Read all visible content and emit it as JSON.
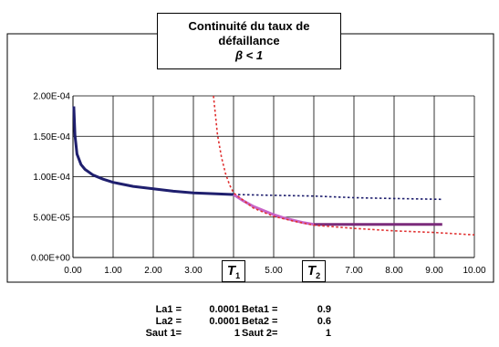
{
  "chart_data": {
    "type": "line",
    "title_line1": "Continuité du taux de",
    "title_line2": "défaillance",
    "title_line3": "β < 1",
    "x_ticks": [
      "0.00",
      "1.00",
      "2.00",
      "3.00",
      "4.00",
      "5.00",
      "6.00",
      "7.00",
      "8.00",
      "9.00",
      "10.00"
    ],
    "y_ticks": [
      "0.00E+00",
      "5.00E-05",
      "1.00E-04",
      "1.50E-04",
      "2.00E-04"
    ],
    "xlim": [
      0,
      10
    ],
    "ylim": [
      0,
      0.0002
    ],
    "grid": true,
    "markers": [
      {
        "letter": "T",
        "sub": "1",
        "x": 4
      },
      {
        "letter": "T",
        "sub": "2",
        "x": 6
      }
    ],
    "series": [
      {
        "style": "solid",
        "color": "#1f1f6e",
        "x": [
          0.02,
          0.05,
          0.1,
          0.2,
          0.3,
          0.5,
          0.75,
          1,
          1.5,
          2,
          2.5,
          3,
          3.5,
          4
        ],
        "y": [
          0.000187,
          0.000151,
          0.000128,
          0.000115,
          0.000109,
          0.000102,
          9.7e-05,
          9.3e-05,
          8.8e-05,
          8.5e-05,
          8.2e-05,
          8e-05,
          7.9e-05,
          7.8e-05
        ]
      },
      {
        "style": "dotted",
        "color": "#1f1f6e",
        "x": [
          4,
          5,
          6,
          7,
          8,
          9.2
        ],
        "y": [
          7.8e-05,
          7.7e-05,
          7.6e-05,
          7.4e-05,
          7.3e-05,
          7.2e-05
        ]
      },
      {
        "style": "solid",
        "color": "#c864c8",
        "x": [
          4,
          4.25,
          4.5,
          4.75,
          5,
          5.25,
          5.5,
          5.75,
          6
        ],
        "y": [
          7.8e-05,
          7e-05,
          6.3e-05,
          5.8e-05,
          5.3e-05,
          4.9e-05,
          4.6e-05,
          4.3e-05,
          4.1e-05
        ]
      },
      {
        "style": "solid",
        "color": "#7b2b7b",
        "x": [
          6,
          9.2
        ],
        "y": [
          4.1e-05,
          4.1e-05
        ]
      },
      {
        "style": "dotted",
        "color": "#e03030",
        "x": [
          3.5,
          3.6,
          3.7,
          3.8,
          3.9,
          4,
          4.5,
          5,
          5.5,
          6,
          7,
          8,
          9,
          10
        ],
        "y": [
          0.0002,
          0.000152,
          0.000124,
          0.000104,
          9e-05,
          8e-05,
          6.1e-05,
          5.1e-05,
          4.5e-05,
          4e-05,
          3.6e-05,
          3.3e-05,
          3.1e-05,
          2.8e-05
        ]
      }
    ]
  },
  "params": [
    {
      "l1": "La1 =",
      "v1": "0.0001",
      "l2": "Beta1 =",
      "v2": "0.9"
    },
    {
      "l1": "La2 =",
      "v1": "0.0001",
      "l2": "Beta2 =",
      "v2": "0.6"
    },
    {
      "l1": "Saut 1=",
      "v1": "1",
      "l2": "Saut 2=",
      "v2": "1"
    }
  ]
}
